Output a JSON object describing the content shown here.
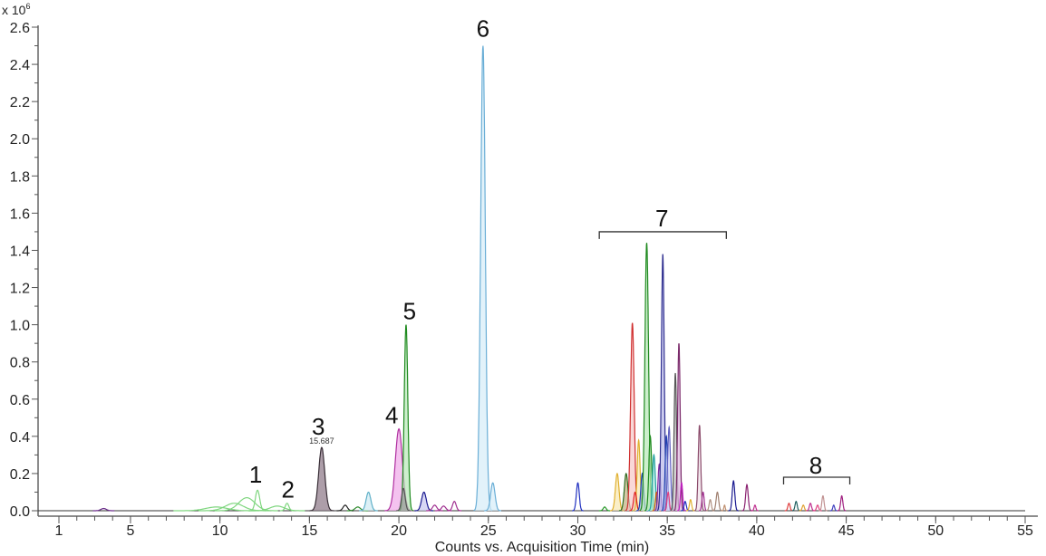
{
  "chart_data": {
    "type": "line",
    "title": "",
    "xlabel": "Counts vs. Acquisition Time (min)",
    "ylabel": "",
    "y_multiplier": "x 10",
    "y_multiplier_exp": "6",
    "xlim": [
      0.6,
      56.0
    ],
    "ylim": [
      0,
      2.65
    ],
    "x_ticks": [
      1,
      5,
      10,
      15,
      20,
      25,
      30,
      35,
      40,
      45,
      50,
      55
    ],
    "y_ticks": [
      "0.0",
      "0.2",
      "0.4",
      "0.6",
      "0.8",
      "1.0",
      "1.2",
      "1.4",
      "1.6",
      "1.8",
      "2.0",
      "2.2",
      "2.4",
      "2.6"
    ],
    "grid": false,
    "peaks": [
      {
        "t": 3.5,
        "h": 0.012,
        "w": 0.15,
        "color": "#6a2c8a"
      },
      {
        "t": 9.8,
        "h": 0.02,
        "w": 0.6,
        "color": "#7fd67f"
      },
      {
        "t": 10.8,
        "h": 0.04,
        "w": 0.5,
        "color": "#7fd67f"
      },
      {
        "t": 11.5,
        "h": 0.07,
        "w": 0.45,
        "color": "#7fd67f"
      },
      {
        "t": 12.1,
        "h": 0.11,
        "w": 0.12,
        "color": "#7fd67f"
      },
      {
        "t": 13.2,
        "h": 0.025,
        "w": 0.4,
        "color": "#7fd67f"
      },
      {
        "t": 13.75,
        "h": 0.04,
        "w": 0.1,
        "color": "#7fd67f"
      },
      {
        "t": 15.687,
        "h": 0.34,
        "w": 0.17,
        "color": "#3a3038",
        "fill": "#8a7585"
      },
      {
        "t": 17.0,
        "h": 0.03,
        "w": 0.12,
        "color": "#222222"
      },
      {
        "t": 17.7,
        "h": 0.02,
        "w": 0.15,
        "color": "#2e8b2e"
      },
      {
        "t": 18.3,
        "h": 0.1,
        "w": 0.13,
        "color": "#5fb0c8",
        "fill": "#cfe9f2"
      },
      {
        "t": 20.0,
        "h": 0.44,
        "w": 0.2,
        "color": "#b030a0",
        "fill": "#f0a8e8"
      },
      {
        "t": 20.4,
        "h": 1.0,
        "w": 0.1,
        "color": "#1f8a1f",
        "fill": "#b8e8b8"
      },
      {
        "t": 20.25,
        "h": 0.12,
        "w": 0.1,
        "color": "#555555",
        "fill": "#9a9a9a"
      },
      {
        "t": 21.4,
        "h": 0.1,
        "w": 0.13,
        "color": "#1a1a90",
        "fill": "#c8c8f0"
      },
      {
        "t": 22.0,
        "h": 0.03,
        "w": 0.12,
        "color": "#a03090"
      },
      {
        "t": 22.5,
        "h": 0.025,
        "w": 0.12,
        "color": "#a03090"
      },
      {
        "t": 23.1,
        "h": 0.05,
        "w": 0.1,
        "color": "#a03090"
      },
      {
        "t": 24.7,
        "h": 2.5,
        "w": 0.13,
        "color": "#6aaed6",
        "fill": "#d6ecf8"
      },
      {
        "t": 25.25,
        "h": 0.15,
        "w": 0.12,
        "color": "#6aaed6",
        "fill": "#d6ecf8"
      },
      {
        "t": 30.0,
        "h": 0.15,
        "w": 0.08,
        "color": "#2030c0"
      },
      {
        "t": 31.5,
        "h": 0.02,
        "w": 0.08,
        "color": "#2a9a2a"
      },
      {
        "t": 32.2,
        "h": 0.2,
        "w": 0.1,
        "color": "#e0b030",
        "fill": "#f8e8b0"
      },
      {
        "t": 32.7,
        "h": 0.2,
        "w": 0.1,
        "color": "#2e6a20",
        "fill": "#c0b080"
      },
      {
        "t": 33.05,
        "h": 1.01,
        "w": 0.1,
        "color": "#d03030",
        "fill": "#f6c8c8"
      },
      {
        "t": 33.4,
        "h": 0.38,
        "w": 0.08,
        "color": "#e0b030",
        "fill": "#f8e8b0"
      },
      {
        "t": 33.2,
        "h": 0.1,
        "w": 0.08,
        "color": "#e02020"
      },
      {
        "t": 33.6,
        "h": 0.2,
        "w": 0.08,
        "color": "#2040b0",
        "fill": "#a8c0f0"
      },
      {
        "t": 33.85,
        "h": 1.44,
        "w": 0.1,
        "color": "#1f8a1f",
        "fill": "#b8e8b8"
      },
      {
        "t": 34.05,
        "h": 0.4,
        "w": 0.08,
        "color": "#1f8a1f",
        "fill": "#b8e8b8"
      },
      {
        "t": 34.25,
        "h": 0.3,
        "w": 0.08,
        "color": "#20a0a0",
        "fill": "#a8e8e0"
      },
      {
        "t": 34.4,
        "h": 0.1,
        "w": 0.06,
        "color": "#e06000"
      },
      {
        "t": 34.55,
        "h": 0.25,
        "w": 0.07,
        "color": "#8030a0",
        "fill": "#d8b0f0"
      },
      {
        "t": 34.75,
        "h": 1.38,
        "w": 0.08,
        "color": "#303090",
        "fill": "#b8b8e8"
      },
      {
        "t": 34.95,
        "h": 0.4,
        "w": 0.07,
        "color": "#2040b0",
        "fill": "#b8c8f0"
      },
      {
        "t": 35.1,
        "h": 0.45,
        "w": 0.08,
        "color": "#6060c0",
        "fill": "#d8d8f8"
      },
      {
        "t": 35.05,
        "h": 0.1,
        "w": 0.06,
        "color": "#e04080"
      },
      {
        "t": 35.45,
        "h": 0.74,
        "w": 0.07,
        "color": "#555555",
        "fill": "#c0c0c0"
      },
      {
        "t": 35.65,
        "h": 0.9,
        "w": 0.07,
        "color": "#7a2a6a",
        "fill": "#e0b8e0"
      },
      {
        "t": 35.8,
        "h": 0.15,
        "w": 0.06,
        "color": "#c020c0"
      },
      {
        "t": 36.0,
        "h": 0.05,
        "w": 0.06,
        "color": "#2030c0"
      },
      {
        "t": 36.3,
        "h": 0.06,
        "w": 0.06,
        "color": "#e0b030"
      },
      {
        "t": 36.8,
        "h": 0.46,
        "w": 0.07,
        "color": "#8a4a6a",
        "fill": "#efe0e8"
      },
      {
        "t": 37.0,
        "h": 0.1,
        "w": 0.06,
        "color": "#a03090"
      },
      {
        "t": 37.4,
        "h": 0.06,
        "w": 0.06,
        "color": "#b09080"
      },
      {
        "t": 37.8,
        "h": 0.1,
        "w": 0.07,
        "color": "#a08070"
      },
      {
        "t": 38.2,
        "h": 0.03,
        "w": 0.04,
        "color": "#c09070"
      },
      {
        "t": 38.7,
        "h": 0.16,
        "w": 0.07,
        "color": "#1a1a90"
      },
      {
        "t": 39.45,
        "h": 0.14,
        "w": 0.07,
        "color": "#8a2070"
      },
      {
        "t": 39.9,
        "h": 0.03,
        "w": 0.05,
        "color": "#c03090"
      },
      {
        "t": 41.8,
        "h": 0.04,
        "w": 0.06,
        "color": "#e04040"
      },
      {
        "t": 42.2,
        "h": 0.05,
        "w": 0.06,
        "color": "#206060"
      },
      {
        "t": 42.6,
        "h": 0.03,
        "w": 0.06,
        "color": "#e0a030"
      },
      {
        "t": 43.0,
        "h": 0.04,
        "w": 0.06,
        "color": "#c03090"
      },
      {
        "t": 43.4,
        "h": 0.03,
        "w": 0.06,
        "color": "#e04080"
      },
      {
        "t": 43.7,
        "h": 0.08,
        "w": 0.06,
        "color": "#c09090"
      },
      {
        "t": 44.3,
        "h": 0.03,
        "w": 0.05,
        "color": "#4040c0"
      },
      {
        "t": 44.75,
        "h": 0.08,
        "w": 0.06,
        "color": "#a02080"
      }
    ],
    "annotations": [
      {
        "label": "1",
        "t": 12.0,
        "y": 0.15
      },
      {
        "label": "2",
        "t": 13.8,
        "y": 0.07
      },
      {
        "label": "3",
        "t": 15.5,
        "y": 0.41
      },
      {
        "label": "4",
        "t": 19.6,
        "y": 0.47
      },
      {
        "label": "5",
        "t": 20.6,
        "y": 1.03
      },
      {
        "label": "6",
        "t": 24.7,
        "y": 2.55
      },
      {
        "label": "7",
        "t": 34.7,
        "y": 1.53
      },
      {
        "label": "8",
        "t": 43.3,
        "y": 0.2
      }
    ],
    "peak_time_label": {
      "text": "15.687",
      "t": 15.687,
      "y": 0.36
    },
    "brackets": [
      {
        "label": "7",
        "from": 31.2,
        "to": 38.3,
        "y": 1.5
      },
      {
        "label": "8",
        "from": 41.5,
        "to": 45.2,
        "y": 0.18
      }
    ]
  }
}
